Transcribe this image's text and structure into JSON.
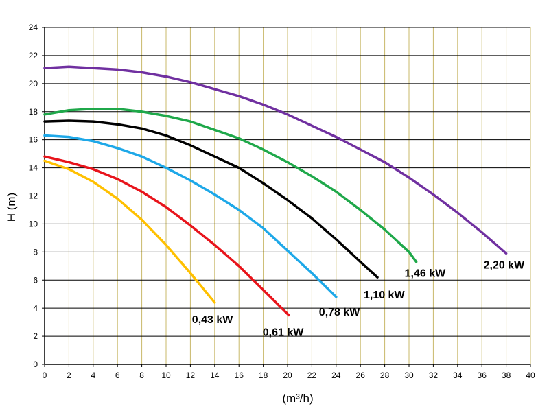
{
  "chart_data": {
    "type": "line",
    "x_label": "(m³/h)",
    "y_label": "H (m)",
    "xlim": [
      0,
      40
    ],
    "ylim": [
      0,
      24
    ],
    "xticks": [
      0,
      2,
      4,
      6,
      8,
      10,
      12,
      14,
      16,
      18,
      20,
      22,
      24,
      26,
      28,
      30,
      32,
      34,
      36,
      38,
      40
    ],
    "yticks": [
      0,
      2,
      4,
      6,
      8,
      10,
      12,
      14,
      16,
      18,
      20,
      22,
      24
    ],
    "grid": true,
    "series": [
      {
        "name": "0,43 kW",
        "color": "#ffc000",
        "x": [
          0,
          2,
          4,
          6,
          8,
          10,
          12,
          14
        ],
        "values": [
          14.5,
          13.9,
          13,
          11.8,
          10.3,
          8.5,
          6.5,
          4.4
        ]
      },
      {
        "name": "0,61 kW",
        "color": "#e8141b",
        "x": [
          0,
          2,
          4,
          6,
          8,
          10,
          12,
          14,
          16,
          18,
          20.1
        ],
        "values": [
          14.8,
          14.4,
          13.9,
          13.2,
          12.3,
          11.2,
          9.9,
          8.5,
          7,
          5.3,
          3.5
        ]
      },
      {
        "name": "0,78 kW",
        "color": "#1ea8e8",
        "x": [
          0,
          2,
          4,
          6,
          8,
          10,
          12,
          14,
          16,
          18,
          20,
          22,
          24
        ],
        "values": [
          16.3,
          16.2,
          15.9,
          15.4,
          14.8,
          14,
          13.1,
          12.1,
          11,
          9.7,
          8.1,
          6.5,
          4.8
        ]
      },
      {
        "name": "1,10 kW",
        "color": "#000000",
        "x": [
          0,
          2,
          4,
          6,
          8,
          10,
          12,
          14,
          16,
          18,
          20,
          22,
          24,
          26,
          27.4
        ],
        "values": [
          17.3,
          17.35,
          17.3,
          17.1,
          16.8,
          16.3,
          15.6,
          14.8,
          14,
          12.9,
          11.7,
          10.4,
          8.9,
          7.3,
          6.2
        ]
      },
      {
        "name": "1,46 kW",
        "color": "#1fa84a",
        "x": [
          0,
          2,
          4,
          6,
          8,
          10,
          12,
          14,
          16,
          18,
          20,
          22,
          24,
          26,
          28,
          30,
          30.6
        ],
        "values": [
          17.8,
          18.1,
          18.2,
          18.2,
          18,
          17.7,
          17.3,
          16.7,
          16.1,
          15.3,
          14.4,
          13.4,
          12.3,
          11,
          9.6,
          8,
          7.3
        ]
      },
      {
        "name": "2,20 kW",
        "color": "#7030a0",
        "x": [
          0,
          2,
          4,
          6,
          8,
          10,
          12,
          14,
          16,
          18,
          20,
          22,
          24,
          26,
          28,
          30,
          32,
          34,
          36,
          38
        ],
        "values": [
          21.1,
          21.2,
          21.1,
          21,
          20.8,
          20.5,
          20.1,
          19.6,
          19.1,
          18.5,
          17.8,
          17,
          16.2,
          15.3,
          14.4,
          13.3,
          12.1,
          10.8,
          9.4,
          7.9
        ]
      }
    ]
  }
}
